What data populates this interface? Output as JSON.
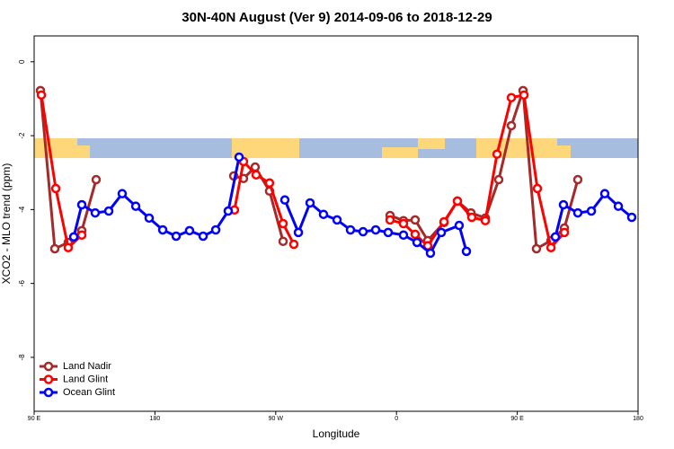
{
  "chart_data": {
    "type": "line",
    "title": "30N-40N August (Ver 9)   2014-09-06 to 2018-12-29",
    "x_label": "Longitude",
    "y_label": "XCO2 - MLO trend (ppm)",
    "xlim": [
      90,
      540
    ],
    "xticks": [
      {
        "value": 90,
        "label": "90 E"
      },
      180,
      {
        "value": 270,
        "label": "90 W"
      },
      {
        "value": 360,
        "label": "0"
      },
      {
        "value": 450,
        "label": "90 E"
      },
      {
        "value": 540,
        "label": "180"
      }
    ],
    "ylim": [
      -9.46,
      0.7
    ],
    "yticks": [
      0,
      -2,
      -4,
      -6,
      -8
    ],
    "legend": "bottom-left",
    "series": [
      {
        "name": "Land Nadir",
        "color": "#a52a2a",
        "x": [
          94.7,
          105.4,
          115.4,
          125.5,
          136.2,
          null,
          238.7,
          246.0,
          254.7,
          265.4,
          275.5,
          null,
          355.2,
          365.2,
          373.9,
          383.3,
          395.4,
          405.4,
          415.5,
          426.2,
          436.2,
          445.6,
          454.3,
          464.3,
          475.1,
          485.1,
          495.1
        ],
        "values": [
          -0.78,
          -5.06,
          -4.89,
          -4.57,
          -3.19,
          null,
          -3.09,
          -3.16,
          -2.85,
          -3.5,
          -4.86,
          null,
          -4.16,
          -4.3,
          -4.28,
          -4.84,
          -4.35,
          -3.77,
          -4.09,
          -4.23,
          -3.19,
          -1.73,
          -0.78,
          -5.06,
          -4.84,
          -4.5,
          -3.19
        ]
      },
      {
        "name": "Land Glint",
        "color": "#ff0000",
        "x": [
          95.4,
          106.1,
          115.4,
          125.5,
          null,
          239.3,
          246.0,
          255.4,
          265.4,
          275.5,
          283.5,
          null,
          355.2,
          365.2,
          373.9,
          383.3,
          395.4,
          405.4,
          416.1,
          426.2,
          434.9,
          445.6,
          455.0,
          465.0,
          475.1,
          485.1
        ],
        "values": [
          -0.9,
          -3.43,
          -5.03,
          -4.69,
          null,
          -4.01,
          -2.7,
          -3.06,
          -3.28,
          -4.38,
          -4.94,
          null,
          -4.28,
          -4.38,
          -4.67,
          -4.98,
          -4.33,
          -3.77,
          -4.21,
          -4.3,
          -2.5,
          -0.97,
          -0.9,
          -3.43,
          -5.03,
          -4.62
        ]
      },
      {
        "name": "Ocean Glint",
        "color": "#0000ff",
        "x": [
          119.5,
          125.5,
          135.5,
          145.6,
          155.6,
          165.7,
          175.7,
          185.8,
          195.8,
          205.8,
          215.9,
          225.3,
          234.6,
          242.7,
          null,
          276.8,
          286.9,
          295.6,
          305.6,
          315.7,
          325.7,
          335.1,
          344.5,
          353.8,
          365.2,
          375.3,
          385.3,
          393.4,
          406.7,
          412.1,
          null,
          478.4,
          484.4,
          495.1,
          505.2,
          515.2,
          525.3,
          535.3
        ],
        "values": [
          -4.74,
          -3.87,
          -4.09,
          -4.04,
          -3.57,
          -3.91,
          -4.23,
          -4.55,
          -4.72,
          -4.57,
          -4.72,
          -4.55,
          -4.04,
          -2.58,
          null,
          -3.74,
          -4.62,
          -3.82,
          -4.13,
          -4.28,
          -4.55,
          -4.6,
          -4.55,
          -4.62,
          -4.69,
          -4.89,
          -5.18,
          -4.62,
          -4.43,
          -5.13,
          null,
          -4.74,
          -3.87,
          -4.09,
          -4.04,
          -3.57,
          -3.91,
          -4.21
        ]
      }
    ]
  }
}
